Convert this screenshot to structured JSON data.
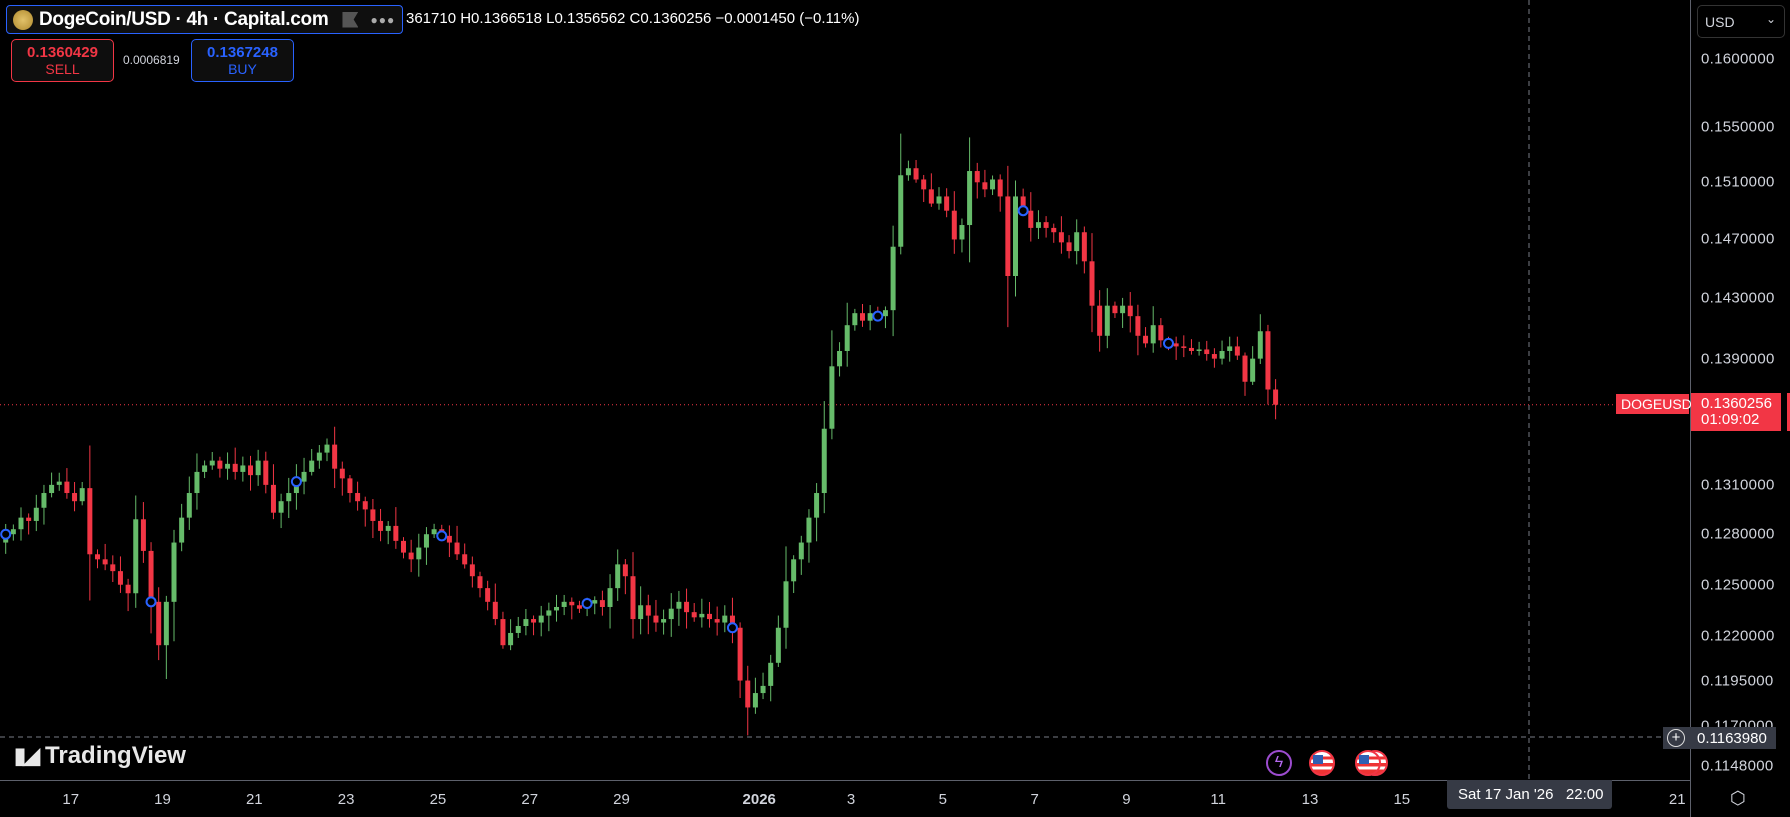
{
  "header": {
    "title": "DogeCoin/USD · 4h · Capital.com",
    "ohlc": "361710 H0.1366518 L0.1356562 C0.1360256 −0.0001450 (−0.11%)",
    "sell": {
      "price": "0.1360429",
      "label": "SELL"
    },
    "spread": "0.0006819",
    "buy": {
      "price": "0.1367248",
      "label": "BUY"
    }
  },
  "currency_selector": "USD",
  "current_price": {
    "symbol": "DOGEUSD",
    "price": "0.1360256",
    "countdown": "01:09:02"
  },
  "crosshair": {
    "price": "0.1163980",
    "time": "Sat 17 Jan '26   22:00"
  },
  "logo": "TradingView",
  "colors": {
    "up": "#66bb6a",
    "down": "#f23645",
    "marker": "#2962ff",
    "price_line": "#f23645"
  },
  "chart_data": {
    "type": "candlestick",
    "interval": "4h",
    "y_scale": "log",
    "ylim": [
      0.1148,
      0.16
    ],
    "y_ticks": [
      "0.1600000",
      "0.1550000",
      "0.1510000",
      "0.1470000",
      "0.1430000",
      "0.1390000",
      "0.1310000",
      "0.1280000",
      "0.1250000",
      "0.1220000",
      "0.1195000",
      "0.1170000",
      "0.1148000"
    ],
    "x_ticks": [
      {
        "label": "17",
        "day": 17
      },
      {
        "label": "19",
        "day": 19
      },
      {
        "label": "21",
        "day": 21
      },
      {
        "label": "23",
        "day": 23
      },
      {
        "label": "25",
        "day": 25
      },
      {
        "label": "27",
        "day": 27
      },
      {
        "label": "29",
        "day": 29
      },
      {
        "label": "2026",
        "day": 32,
        "bold": true
      },
      {
        "label": "3",
        "day": 34
      },
      {
        "label": "5",
        "day": 36
      },
      {
        "label": "7",
        "day": 38
      },
      {
        "label": "9",
        "day": 40
      },
      {
        "label": "11",
        "day": 42
      },
      {
        "label": "13",
        "day": 44
      },
      {
        "label": "15",
        "day": 46
      },
      {
        "label": "21",
        "day": 52
      }
    ],
    "first_open": 0.1275,
    "closes": [
      0.128,
      0.1283,
      0.129,
      0.1288,
      0.1296,
      0.1305,
      0.131,
      0.1312,
      0.1305,
      0.13,
      0.1308,
      0.1268,
      0.1265,
      0.1262,
      0.1258,
      0.125,
      0.1245,
      0.1289,
      0.127,
      0.124,
      0.1215,
      0.124,
      0.1275,
      0.129,
      0.1305,
      0.1318,
      0.1322,
      0.1325,
      0.132,
      0.1323,
      0.1318,
      0.1322,
      0.1316,
      0.1325,
      0.131,
      0.1293,
      0.13,
      0.1305,
      0.1312,
      0.1318,
      0.1325,
      0.133,
      0.1335,
      0.132,
      0.1314,
      0.1305,
      0.13,
      0.1295,
      0.1288,
      0.1282,
      0.1285,
      0.1276,
      0.1269,
      0.1265,
      0.1272,
      0.128,
      0.1283,
      0.1279,
      0.1275,
      0.1268,
      0.1262,
      0.1255,
      0.1248,
      0.124,
      0.123,
      0.1215,
      0.1222,
      0.1226,
      0.123,
      0.1228,
      0.1232,
      0.1235,
      0.1237,
      0.124,
      0.1238,
      0.1236,
      0.1239,
      0.1241,
      0.1237,
      0.1248,
      0.1262,
      0.1255,
      0.123,
      0.1238,
      0.1232,
      0.1228,
      0.123,
      0.1236,
      0.124,
      0.1234,
      0.1231,
      0.1233,
      0.123,
      0.1228,
      0.1232,
      0.1225,
      0.1195,
      0.118,
      0.1188,
      0.1192,
      0.1205,
      0.1225,
      0.1252,
      0.1265,
      0.1275,
      0.129,
      0.1305,
      0.1345,
      0.1385,
      0.1395,
      0.1412,
      0.142,
      0.1415,
      0.142,
      0.1418,
      0.1422,
      0.1465,
      0.1515,
      0.152,
      0.1512,
      0.1505,
      0.1495,
      0.15,
      0.149,
      0.147,
      0.148,
      0.1518,
      0.151,
      0.1505,
      0.1512,
      0.15,
      0.1445,
      0.15,
      0.149,
      0.1478,
      0.1482,
      0.1478,
      0.1475,
      0.1468,
      0.1462,
      0.1475,
      0.1455,
      0.1425,
      0.1405,
      0.1425,
      0.142,
      0.1425,
      0.1418,
      0.1405,
      0.14,
      0.1412,
      0.1402,
      0.14,
      0.1398,
      0.1397,
      0.1395,
      0.1396,
      0.1393,
      0.139,
      0.1395,
      0.1398,
      0.1392,
      0.1375,
      0.139,
      0.1408,
      0.137,
      0.1360256
    ],
    "event_markers": [
      0,
      19,
      38,
      57,
      76,
      95,
      114,
      133,
      152
    ]
  }
}
